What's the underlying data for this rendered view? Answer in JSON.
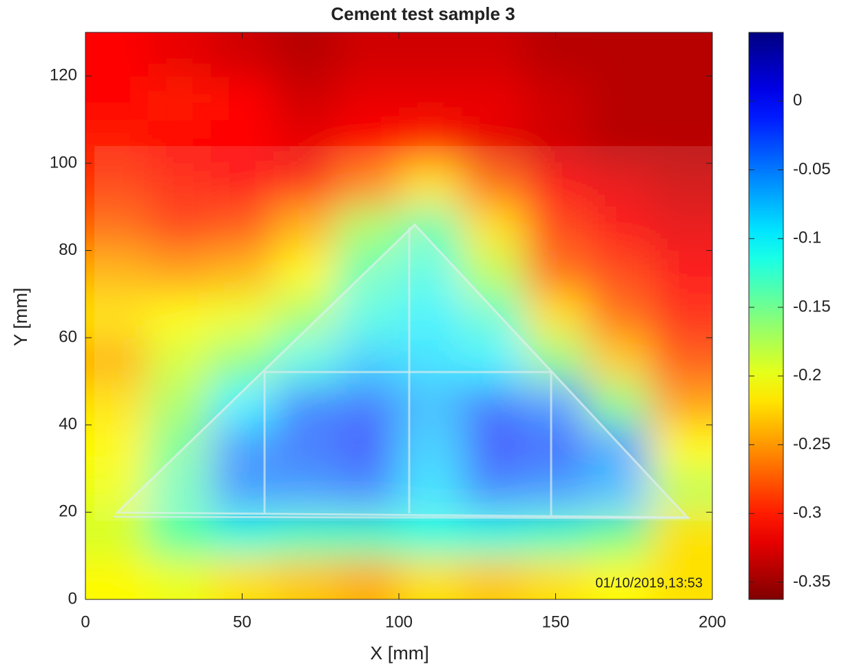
{
  "chart_data": {
    "type": "heatmap",
    "title": "Cement test sample 3",
    "x_label": "X [mm]",
    "y_label": "Y [mm]",
    "annotation": "01/10/2019,13:53",
    "xlim": [
      0,
      200
    ],
    "ylim": [
      0,
      130
    ],
    "xticks": [
      0,
      50,
      100,
      150,
      200
    ],
    "yticks": [
      0,
      20,
      40,
      60,
      80,
      100,
      120
    ],
    "colormap": "jet",
    "clim": [
      -0.3625,
      0.05
    ],
    "cticks": [
      0,
      -0.05,
      -0.1,
      -0.15,
      -0.2,
      -0.25,
      -0.3,
      -0.35
    ],
    "x": [
      10,
      30,
      50,
      70,
      90,
      110,
      130,
      150,
      170,
      190
    ],
    "y": [
      5,
      15,
      25,
      35,
      45,
      55,
      65,
      75,
      85,
      95,
      105,
      115,
      125
    ],
    "z": [
      [
        -0.21,
        -0.2,
        -0.22,
        -0.23,
        -0.24,
        -0.22,
        -0.23,
        -0.22,
        -0.21,
        -0.22
      ],
      [
        -0.19,
        -0.14,
        -0.12,
        -0.13,
        -0.13,
        -0.12,
        -0.12,
        -0.13,
        -0.15,
        -0.22
      ],
      [
        -0.2,
        -0.14,
        -0.05,
        -0.05,
        -0.04,
        -0.09,
        -0.04,
        -0.05,
        -0.07,
        -0.18
      ],
      [
        -0.21,
        -0.15,
        -0.05,
        -0.03,
        -0.01,
        -0.08,
        -0.01,
        -0.02,
        -0.06,
        -0.21
      ],
      [
        -0.22,
        -0.17,
        -0.1,
        -0.04,
        -0.03,
        -0.07,
        -0.03,
        -0.05,
        -0.16,
        -0.25
      ],
      [
        -0.24,
        -0.19,
        -0.16,
        -0.12,
        -0.08,
        -0.09,
        -0.1,
        -0.16,
        -0.23,
        -0.28
      ],
      [
        -0.22,
        -0.21,
        -0.2,
        -0.17,
        -0.12,
        -0.1,
        -0.13,
        -0.22,
        -0.27,
        -0.3
      ],
      [
        -0.24,
        -0.25,
        -0.24,
        -0.21,
        -0.14,
        -0.12,
        -0.18,
        -0.27,
        -0.29,
        -0.31
      ],
      [
        -0.27,
        -0.29,
        -0.28,
        -0.24,
        -0.17,
        -0.14,
        -0.22,
        -0.29,
        -0.31,
        -0.32
      ],
      [
        -0.29,
        -0.3,
        -0.31,
        -0.3,
        -0.26,
        -0.22,
        -0.27,
        -0.31,
        -0.32,
        -0.33
      ],
      [
        -0.3,
        -0.31,
        -0.31,
        -0.32,
        -0.31,
        -0.3,
        -0.32,
        -0.33,
        -0.34,
        -0.34
      ],
      [
        -0.31,
        -0.3,
        -0.31,
        -0.33,
        -0.32,
        -0.32,
        -0.32,
        -0.33,
        -0.34,
        -0.34
      ],
      [
        -0.31,
        -0.32,
        -0.33,
        -0.34,
        -0.33,
        -0.33,
        -0.33,
        -0.34,
        -0.34,
        -0.34
      ]
    ]
  }
}
